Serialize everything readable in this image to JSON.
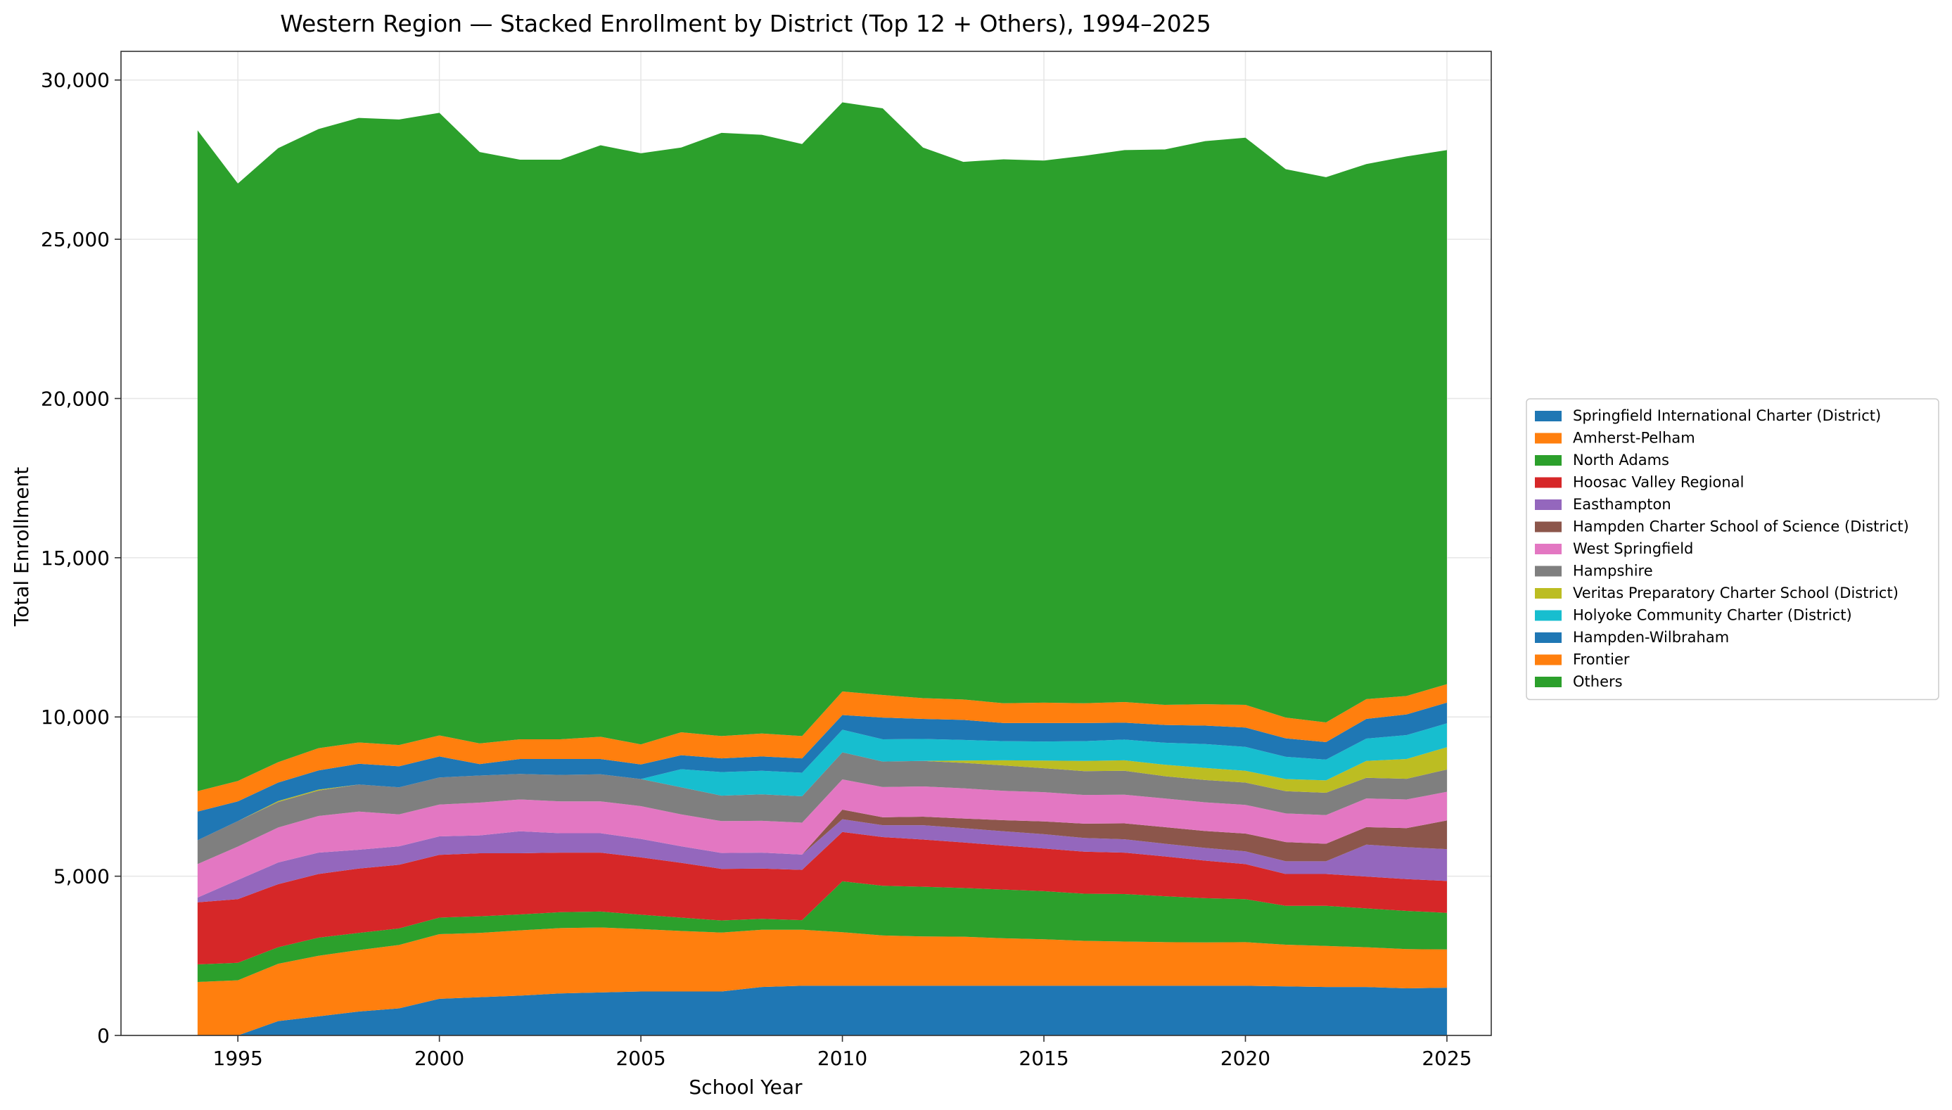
{
  "chart_data": {
    "type": "area",
    "stacked": true,
    "title": "Western Region — Stacked Enrollment by District (Top 12 + Others), 1994–2025",
    "xlabel": "School Year",
    "ylabel": "Total Enrollment",
    "xlim": [
      1992.1,
      2026.1
    ],
    "ylim": [
      0,
      30900
    ],
    "xticks": [
      1995,
      2000,
      2005,
      2010,
      2015,
      2020,
      2025
    ],
    "yticks": [
      0,
      5000,
      10000,
      15000,
      20000,
      25000,
      30000
    ],
    "ytick_labels": [
      "0",
      "5,000",
      "10,000",
      "15,000",
      "20,000",
      "25,000",
      "30,000"
    ],
    "grid": true,
    "legend_position": "right",
    "x": [
      1994,
      1995,
      1996,
      1997,
      1998,
      1999,
      2000,
      2001,
      2002,
      2003,
      2004,
      2005,
      2006,
      2007,
      2008,
      2009,
      2010,
      2011,
      2012,
      2013,
      2014,
      2015,
      2016,
      2017,
      2018,
      2019,
      2020,
      2021,
      2022,
      2023,
      2024,
      2025
    ],
    "series": [
      {
        "name": "Springfield International Charter (District)",
        "color": "#1f77b4",
        "values": [
          0,
          0,
          450,
          600,
          750,
          850,
          1150,
          1200,
          1250,
          1320,
          1350,
          1380,
          1380,
          1380,
          1520,
          1560,
          1560,
          1560,
          1560,
          1560,
          1560,
          1560,
          1560,
          1560,
          1560,
          1560,
          1560,
          1540,
          1520,
          1520,
          1480,
          1500
        ]
      },
      {
        "name": "Amherst-Pelham",
        "color": "#ff7f0e",
        "values": [
          1680,
          1730,
          1800,
          1900,
          1930,
          1990,
          2030,
          2020,
          2050,
          2050,
          2040,
          1960,
          1900,
          1850,
          1800,
          1760,
          1680,
          1580,
          1550,
          1540,
          1490,
          1460,
          1410,
          1390,
          1370,
          1360,
          1370,
          1310,
          1290,
          1250,
          1230,
          1200
        ]
      },
      {
        "name": "North Adams",
        "color": "#2ca02c",
        "values": [
          550,
          550,
          520,
          570,
          540,
          520,
          520,
          520,
          500,
          500,
          500,
          450,
          420,
          380,
          340,
          300,
          1600,
          1560,
          1560,
          1530,
          1530,
          1510,
          1480,
          1490,
          1440,
          1390,
          1350,
          1220,
          1260,
          1220,
          1200,
          1150
        ]
      },
      {
        "name": "Hoosac Valley Regional",
        "color": "#d62728",
        "values": [
          1950,
          2000,
          1980,
          2000,
          2020,
          2000,
          1970,
          1980,
          1920,
          1870,
          1850,
          1800,
          1720,
          1620,
          1580,
          1580,
          1550,
          1530,
          1480,
          1430,
          1380,
          1340,
          1320,
          1300,
          1250,
          1180,
          1100,
          1000,
          1000,
          1000,
          1000,
          1000
        ]
      },
      {
        "name": "Easthampton",
        "color": "#9467bd",
        "values": [
          150,
          600,
          680,
          670,
          590,
          580,
          580,
          560,
          690,
          610,
          610,
          580,
          520,
          500,
          500,
          480,
          400,
          370,
          450,
          450,
          450,
          450,
          430,
          420,
          400,
          400,
          400,
          400,
          400,
          1000,
          1000,
          1000
        ]
      },
      {
        "name": "Hampden Charter School of Science (District)",
        "color": "#8c564b",
        "values": [
          0,
          0,
          0,
          0,
          0,
          0,
          0,
          0,
          0,
          0,
          0,
          0,
          0,
          0,
          0,
          0,
          300,
          250,
          270,
          300,
          350,
          400,
          450,
          500,
          520,
          530,
          560,
          600,
          550,
          550,
          600,
          900
        ]
      },
      {
        "name": "West Springfield",
        "color": "#e377c2",
        "values": [
          1050,
          1050,
          1100,
          1150,
          1200,
          1000,
          1000,
          1030,
          1000,
          1000,
          1000,
          1030,
          1000,
          1000,
          1000,
          1000,
          950,
          950,
          950,
          950,
          920,
          920,
          900,
          900,
          900,
          900,
          900,
          900,
          900,
          900,
          900,
          900
        ]
      },
      {
        "name": "Hampshire",
        "color": "#7f7f7f",
        "values": [
          750,
          800,
          800,
          800,
          850,
          850,
          850,
          850,
          800,
          830,
          850,
          850,
          850,
          800,
          830,
          830,
          850,
          800,
          800,
          800,
          800,
          750,
          750,
          750,
          700,
          700,
          700,
          700,
          700,
          650,
          650,
          700
        ]
      },
      {
        "name": "Veritas Preparatory Charter School (District)",
        "color": "#bcbd22",
        "values": [
          0,
          0,
          30,
          30,
          0,
          0,
          0,
          0,
          0,
          0,
          0,
          0,
          0,
          0,
          0,
          0,
          0,
          0,
          0,
          70,
          160,
          240,
          320,
          330,
          360,
          380,
          370,
          380,
          390,
          530,
          620,
          700
        ]
      },
      {
        "name": "Holyoke Community Charter (District)",
        "color": "#17becf",
        "values": [
          0,
          0,
          0,
          0,
          0,
          0,
          0,
          0,
          0,
          0,
          0,
          0,
          570,
          740,
          740,
          740,
          710,
          700,
          690,
          650,
          600,
          600,
          620,
          650,
          690,
          750,
          750,
          700,
          650,
          700,
          750,
          750
        ]
      },
      {
        "name": "Hampden-Wilbraham",
        "color": "#1f77b4",
        "values": [
          900,
          620,
          580,
          600,
          650,
          660,
          660,
          360,
          470,
          500,
          480,
          460,
          440,
          430,
          450,
          450,
          460,
          680,
          630,
          630,
          570,
          580,
          570,
          530,
          560,
          580,
          610,
          580,
          550,
          620,
          650,
          650
        ]
      },
      {
        "name": "Frontier",
        "color": "#ff7f0e",
        "values": [
          640,
          640,
          640,
          700,
          670,
          670,
          660,
          650,
          620,
          620,
          700,
          630,
          720,
          700,
          720,
          700,
          740,
          710,
          650,
          640,
          620,
          640,
          620,
          650,
          630,
          670,
          710,
          650,
          620,
          620,
          580,
          580
        ]
      },
      {
        "name": "Others",
        "color": "#2ca02c",
        "values": [
          20750,
          18760,
          19280,
          19440,
          19610,
          19640,
          19550,
          18570,
          18200,
          18200,
          18570,
          18560,
          18360,
          18940,
          18800,
          18590,
          18500,
          18420,
          17290,
          16880,
          17080,
          17020,
          17190,
          17330,
          17440,
          17680,
          17810,
          17220,
          17120,
          16800,
          16940,
          16770
        ]
      }
    ]
  }
}
